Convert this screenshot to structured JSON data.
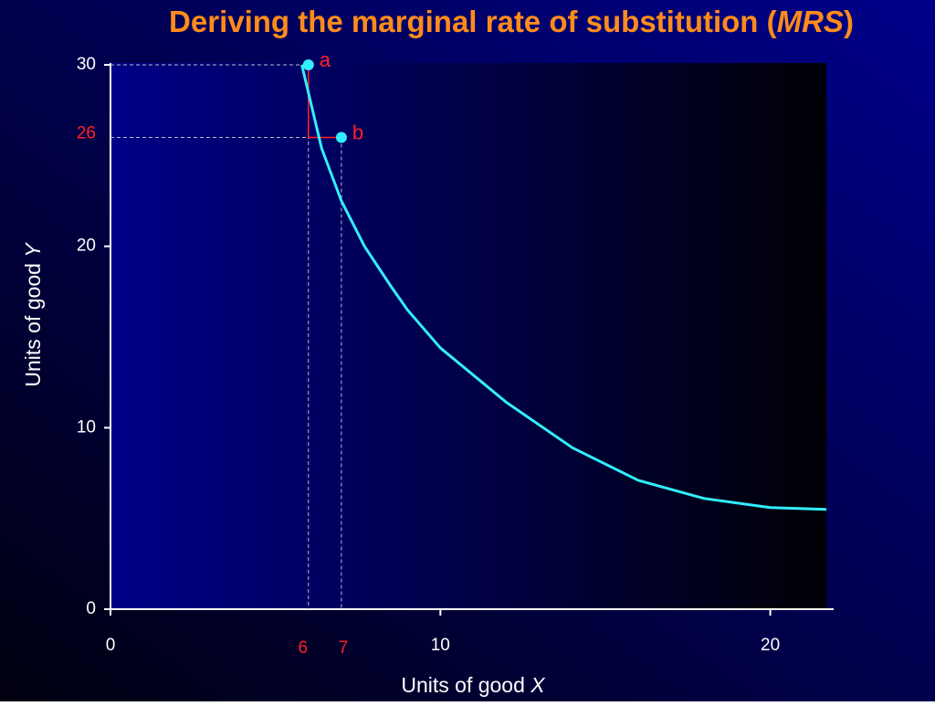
{
  "chart_data": {
    "type": "line",
    "title": [
      "Deriving the marginal rate of substitution (",
      "MRS",
      ")"
    ],
    "x_label": [
      "Units of good ",
      "X"
    ],
    "y_label": [
      "Units of good ",
      "Y"
    ],
    "xlim": [
      0,
      21.7
    ],
    "ylim": [
      0,
      30
    ],
    "xticks": [
      0,
      10,
      20
    ],
    "yticks": [
      0,
      10,
      20,
      30
    ],
    "series": [
      {
        "color": "#33eeff",
        "x": [
          5.8,
          6.4,
          7,
          7.7,
          8.5,
          9,
          10,
          12,
          14,
          16,
          18,
          20,
          21.7
        ],
        "values": [
          30,
          25.4,
          22.5,
          20,
          17.8,
          16.5,
          14.4,
          11.4,
          8.9,
          7.1,
          6.1,
          5.6,
          5.5
        ]
      }
    ],
    "points": [
      {
        "label": "a",
        "x": 6,
        "y": 30
      },
      {
        "label": "b",
        "x": 7,
        "y": 26
      }
    ],
    "point_color": "#33eeff",
    "annotation_color": "#ff2222",
    "title_color": "#ff8c1a"
  }
}
